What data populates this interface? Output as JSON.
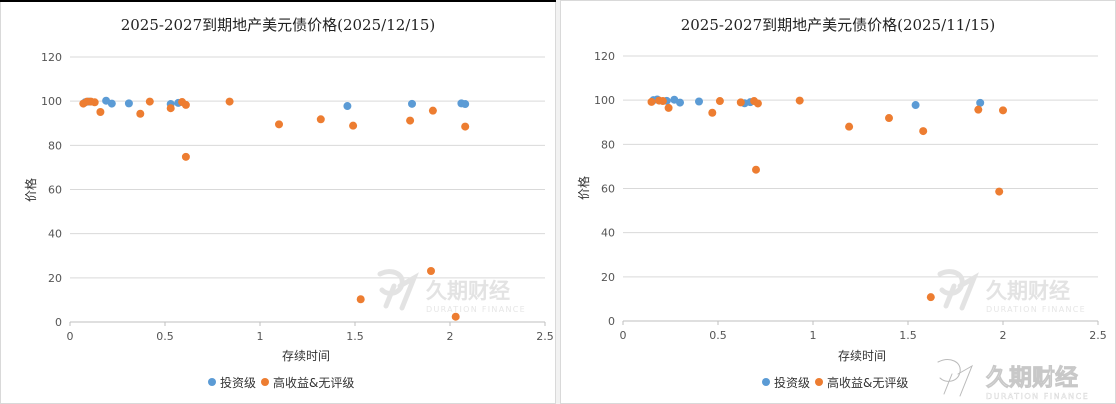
{
  "colors": {
    "investment_grade": "#5b9bd5",
    "high_yield": "#ed7d31",
    "gridline": "#d9d9d9",
    "axis": "#bfbfbf"
  },
  "watermark": {
    "brand": "久期财经",
    "sub": "DURATION FINANCE",
    "icon": "duration-finance-logo-icon"
  },
  "chart_data": [
    {
      "type": "scatter",
      "title": "2025-2027到期地产美元债价格(2025/12/15)",
      "xlabel": "存续时间",
      "ylabel": "价格",
      "xlim": [
        0,
        2.5
      ],
      "ylim": [
        0,
        120
      ],
      "x_ticks": [
        "0",
        "0.5",
        "1",
        "1.5",
        "2",
        "2.5"
      ],
      "y_ticks": [
        "0",
        "20",
        "40",
        "60",
        "80",
        "100",
        "120"
      ],
      "grid": "horizontal",
      "legend_position": "bottom",
      "series": [
        {
          "name": "投资级",
          "points": [
            [
              0.08,
              99.5
            ],
            [
              0.1,
              99.8
            ],
            [
              0.19,
              100.2
            ],
            [
              0.22,
              98.9
            ],
            [
              0.31,
              99.0
            ],
            [
              0.53,
              98.7
            ],
            [
              0.57,
              99.2
            ],
            [
              1.46,
              97.8
            ],
            [
              1.8,
              98.8
            ],
            [
              2.06,
              99.0
            ],
            [
              2.08,
              98.7
            ]
          ]
        },
        {
          "name": "高收益&无评级",
          "points": [
            [
              0.07,
              98.9
            ],
            [
              0.09,
              99.8
            ],
            [
              0.11,
              99.8
            ],
            [
              0.13,
              99.5
            ],
            [
              0.16,
              95.1
            ],
            [
              0.37,
              94.3
            ],
            [
              0.42,
              99.8
            ],
            [
              0.53,
              96.8
            ],
            [
              0.59,
              99.6
            ],
            [
              0.61,
              98.3
            ],
            [
              0.61,
              74.8
            ],
            [
              0.84,
              99.8
            ],
            [
              1.1,
              89.5
            ],
            [
              1.32,
              91.8
            ],
            [
              1.49,
              88.9
            ],
            [
              1.53,
              10.3
            ],
            [
              1.79,
              91.2
            ],
            [
              1.9,
              23.1
            ],
            [
              1.91,
              95.7
            ],
            [
              2.03,
              2.4
            ],
            [
              2.08,
              88.5
            ]
          ]
        }
      ]
    },
    {
      "type": "scatter",
      "title": "2025-2027到期地产美元债价格(2025/11/15)",
      "xlabel": "存续时间",
      "ylabel": "价格",
      "xlim": [
        0,
        2.5
      ],
      "ylim": [
        0,
        120
      ],
      "x_ticks": [
        "0",
        "0.5",
        "1",
        "1.5",
        "2",
        "2.5"
      ],
      "y_ticks": [
        "0",
        "20",
        "40",
        "60",
        "80",
        "100",
        "120"
      ],
      "grid": "horizontal",
      "legend_position": "bottom",
      "series": [
        {
          "name": "投资级",
          "points": [
            [
              0.16,
              100.0
            ],
            [
              0.18,
              100.3
            ],
            [
              0.23,
              99.7
            ],
            [
              0.27,
              100.2
            ],
            [
              0.3,
              98.9
            ],
            [
              0.4,
              99.4
            ],
            [
              0.64,
              98.6
            ],
            [
              0.67,
              99.1
            ],
            [
              1.54,
              97.8
            ],
            [
              1.88,
              98.8
            ]
          ]
        },
        {
          "name": "高收益&无评级",
          "points": [
            [
              0.15,
              99.2
            ],
            [
              0.19,
              99.8
            ],
            [
              0.21,
              99.6
            ],
            [
              0.24,
              96.5
            ],
            [
              0.47,
              94.3
            ],
            [
              0.51,
              99.6
            ],
            [
              0.62,
              99.0
            ],
            [
              0.69,
              99.6
            ],
            [
              0.7,
              68.5
            ],
            [
              0.71,
              98.5
            ],
            [
              0.93,
              99.8
            ],
            [
              1.19,
              88.0
            ],
            [
              1.4,
              91.9
            ],
            [
              1.58,
              86.0
            ],
            [
              1.62,
              10.8
            ],
            [
              1.87,
              95.7
            ],
            [
              1.98,
              58.6
            ],
            [
              2.0,
              95.4
            ]
          ]
        }
      ]
    }
  ]
}
